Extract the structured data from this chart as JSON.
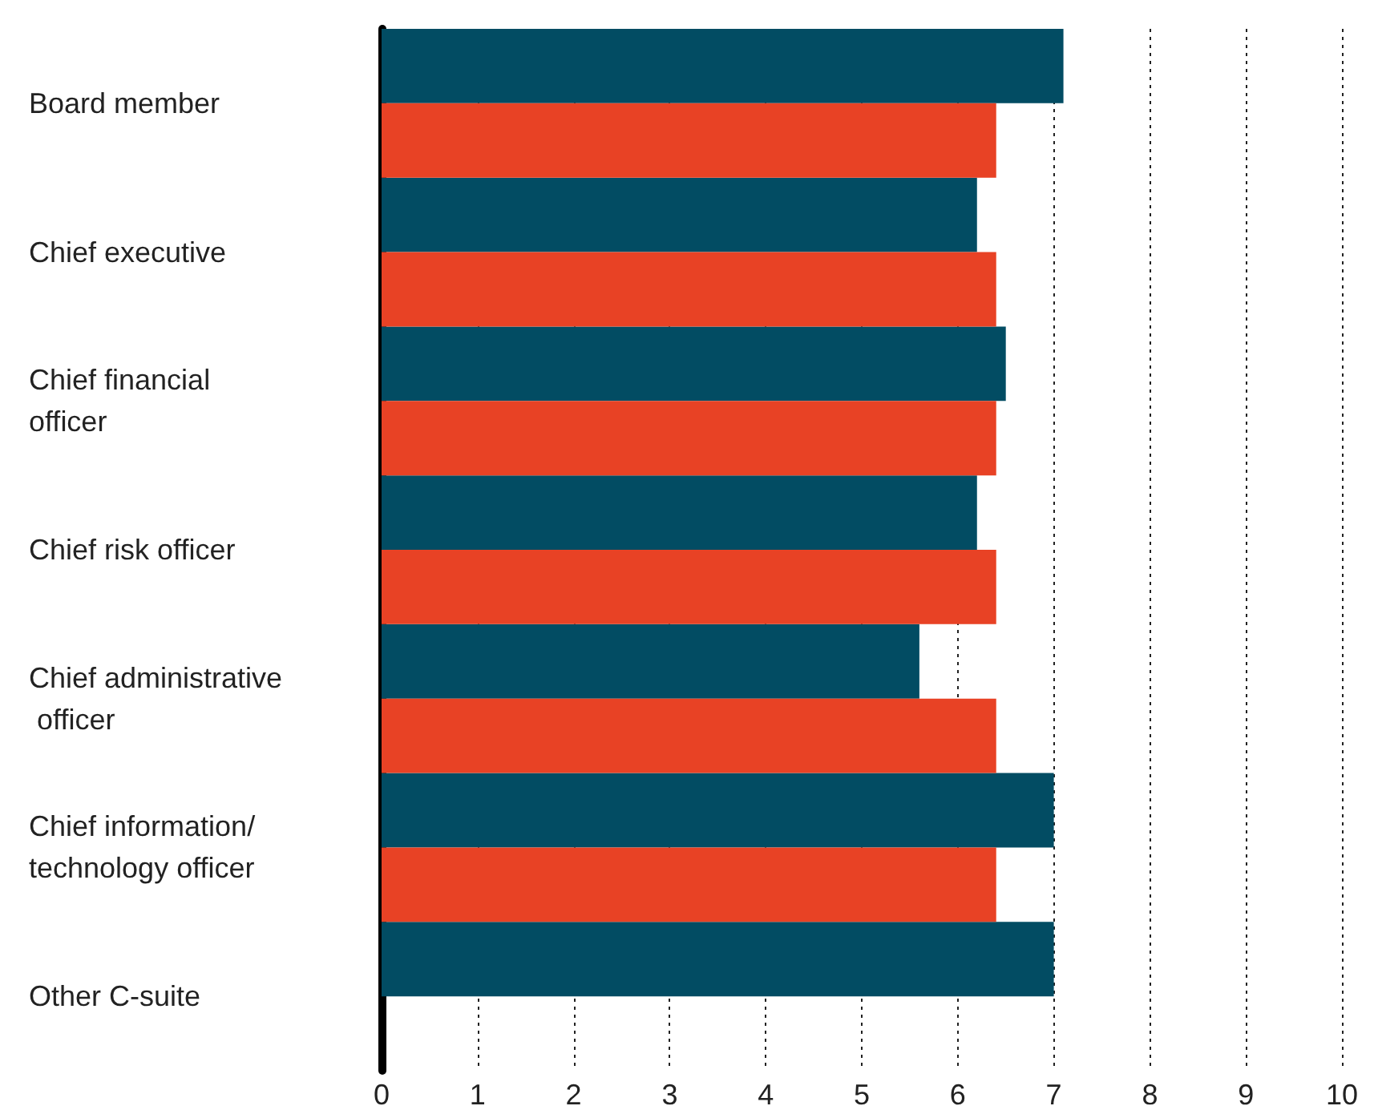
{
  "chart_data": {
    "type": "bar",
    "orientation": "horizontal",
    "categories": [
      "Board member",
      "Chief executive",
      "Chief financial officer",
      "Chief risk officer",
      "Chief administrative officer",
      "Chief information/ technology officer",
      "Other C-suite"
    ],
    "series": [
      {
        "color": "#024c63",
        "values": [
          7.1,
          6.2,
          6.5,
          6.2,
          5.6,
          7.0,
          7.0
        ]
      },
      {
        "color": "#e84225",
        "values": [
          6.4,
          6.4,
          6.4,
          6.4,
          6.4,
          6.4,
          null
        ]
      }
    ],
    "xlim": [
      0,
      10
    ],
    "xticks": [
      0,
      1,
      2,
      3,
      4,
      5,
      6,
      7,
      8,
      9,
      10
    ],
    "grid": "x"
  }
}
